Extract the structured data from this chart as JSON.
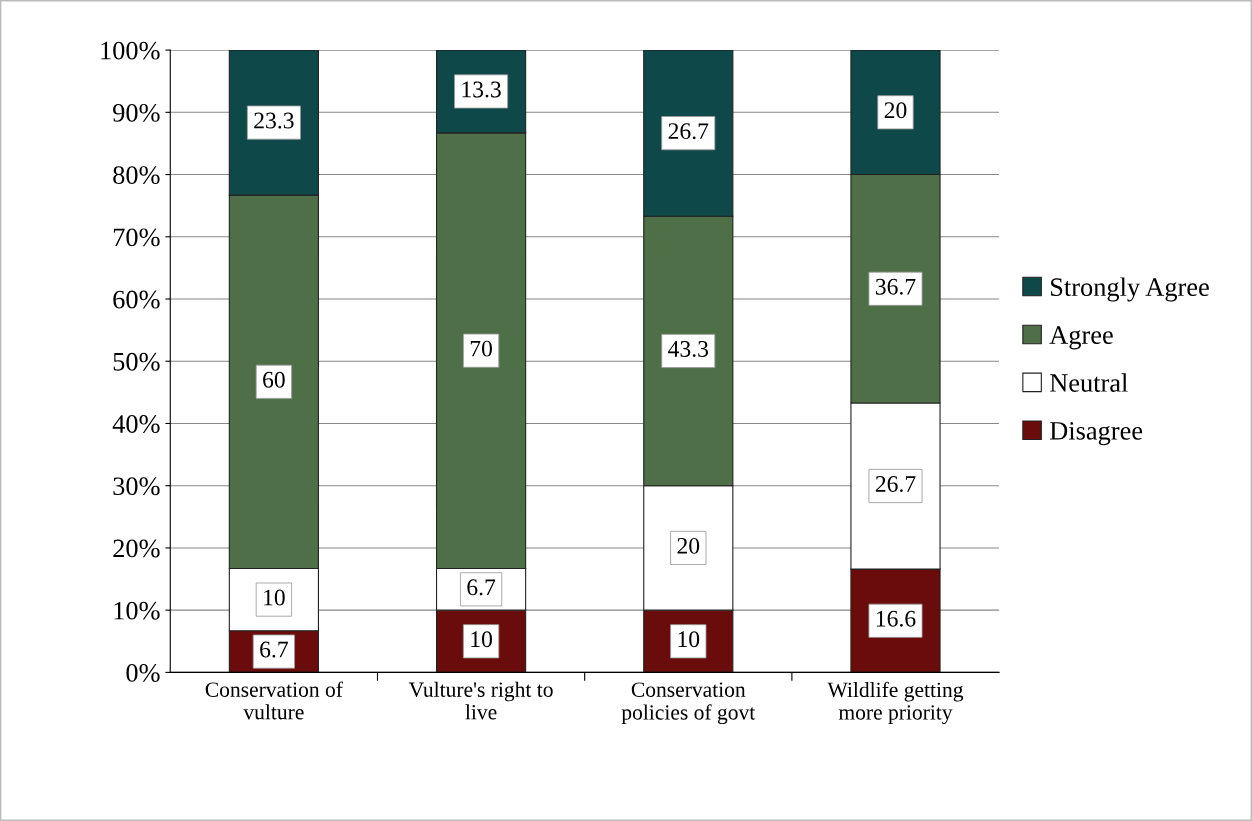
{
  "chart_data": {
    "type": "bar",
    "stacked": true,
    "categories": [
      "Conservation of\nvulture",
      "Vulture's right to\nlive",
      "Conservation\npolicies of govt",
      "Wildlife getting\nmore priority"
    ],
    "series": [
      {
        "name": "Disagree",
        "color": "#6a0c0c",
        "values": [
          6.7,
          10,
          10,
          16.6
        ]
      },
      {
        "name": "Neutral",
        "color": "#ffffff",
        "values": [
          10,
          6.7,
          20,
          26.7
        ]
      },
      {
        "name": "Agree",
        "color": "#4f6f48",
        "values": [
          60,
          70,
          43.3,
          36.7
        ]
      },
      {
        "name": "Strongly Agree",
        "color": "#0e4848",
        "values": [
          23.3,
          13.3,
          26.7,
          20
        ]
      }
    ],
    "ylim": [
      0,
      100
    ],
    "yticks": [
      {
        "value": 0,
        "label": "0%"
      },
      {
        "value": 10,
        "label": "10%"
      },
      {
        "value": 20,
        "label": "20%"
      },
      {
        "value": 30,
        "label": "30%"
      },
      {
        "value": 40,
        "label": "40%"
      },
      {
        "value": 50,
        "label": "50%"
      },
      {
        "value": 60,
        "label": "60%"
      },
      {
        "value": 70,
        "label": "70%"
      },
      {
        "value": 80,
        "label": "80%"
      },
      {
        "value": 90,
        "label": "90%"
      },
      {
        "value": 100,
        "label": "100%"
      }
    ],
    "grid": "y",
    "legend": "right",
    "data_labels": true
  }
}
